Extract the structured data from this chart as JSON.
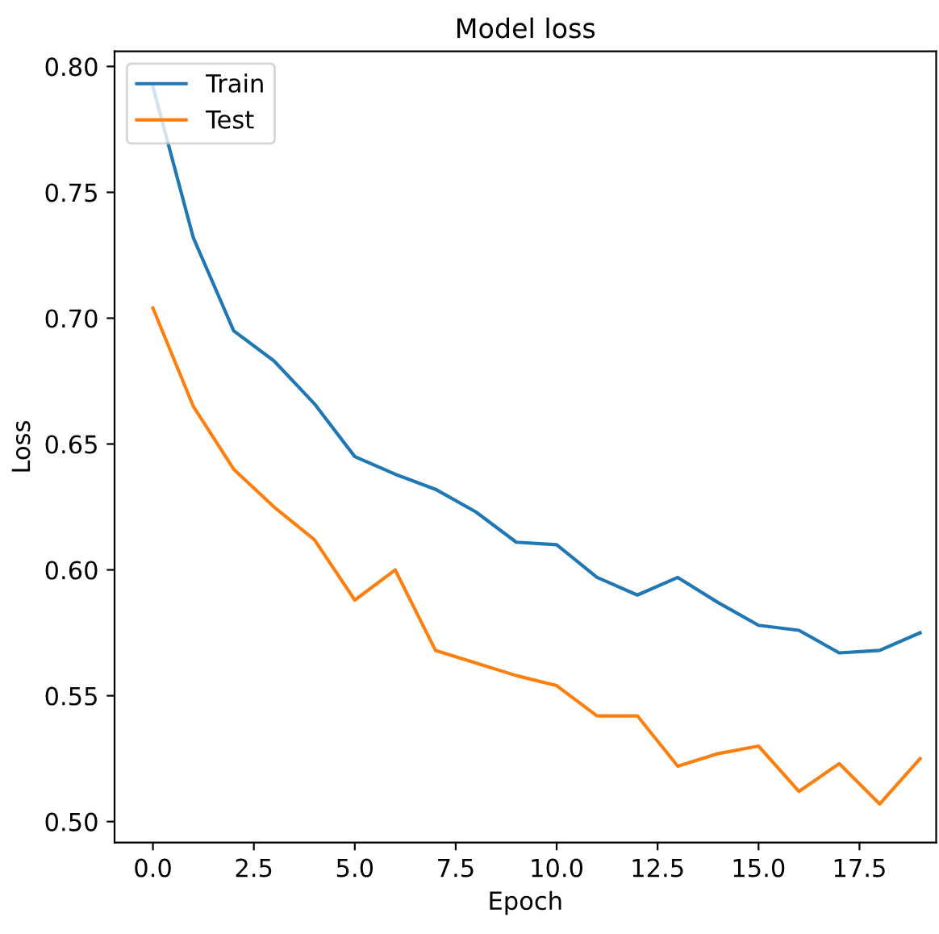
{
  "chart_data": {
    "type": "line",
    "title": "Model loss",
    "xlabel": "Epoch",
    "ylabel": "Loss",
    "x": [
      0,
      1,
      2,
      3,
      4,
      5,
      6,
      7,
      8,
      9,
      10,
      11,
      12,
      13,
      14,
      15,
      16,
      17,
      18,
      19
    ],
    "series": [
      {
        "name": "Train",
        "color": "#1f77b4",
        "values": [
          0.792,
          0.732,
          0.695,
          0.683,
          0.666,
          0.645,
          0.638,
          0.632,
          0.623,
          0.611,
          0.61,
          0.597,
          0.59,
          0.597,
          0.587,
          0.578,
          0.576,
          0.567,
          0.568,
          0.575
        ]
      },
      {
        "name": "Test",
        "color": "#ff7f0e",
        "values": [
          0.704,
          0.665,
          0.64,
          0.625,
          0.612,
          0.588,
          0.6,
          0.568,
          0.563,
          0.558,
          0.554,
          0.542,
          0.542,
          0.522,
          0.527,
          0.53,
          0.512,
          0.523,
          0.507,
          0.525
        ]
      }
    ],
    "xlim": [
      -0.95,
      19.4
    ],
    "ylim": [
      0.4917,
      0.806
    ],
    "xticks": [
      {
        "value": 0,
        "label": "0.0"
      },
      2.5,
      {
        "value": 5,
        "label": "5.0"
      },
      7.5,
      {
        "value": 10,
        "label": "10.0"
      },
      12.5,
      {
        "value": 15,
        "label": "15.0"
      },
      17.5
    ],
    "yticks": [
      {
        "value": 0.5,
        "label": "0.50"
      },
      0.55,
      {
        "value": 0.6,
        "label": "0.60"
      },
      0.65,
      {
        "value": 0.7,
        "label": "0.70"
      },
      0.75,
      {
        "value": 0.8,
        "label": "0.80"
      }
    ],
    "legend": "top left",
    "grid": false
  }
}
